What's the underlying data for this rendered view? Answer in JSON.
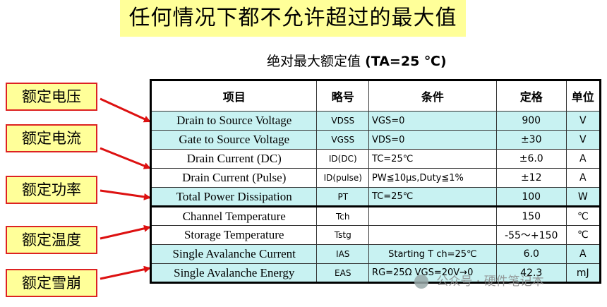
{
  "banner": "任何情况下都不允许超过的最大值",
  "subtitle": {
    "text": "绝对最大额定值",
    "condition": "(TA=25 ℃)"
  },
  "labels": [
    "额定电压",
    "额定电流",
    "额定功率",
    "额定温度",
    "额定雪崩"
  ],
  "table": {
    "headers": [
      "项目",
      "略号",
      "条件",
      "定格",
      "单位"
    ],
    "rows": [
      {
        "item": "Drain to Source Voltage",
        "symbol": "VDSS",
        "condition": "VGS=0",
        "rating": "900",
        "unit": "V",
        "style": "cyan"
      },
      {
        "item": "Gate to Source Voltage",
        "symbol": "VGSS",
        "condition": "VDS=0",
        "rating": "±30",
        "unit": "V",
        "style": "cyan"
      },
      {
        "item": "Drain Current (DC)",
        "symbol": "ID(DC)",
        "condition": "TC=25℃",
        "rating": "±6.0",
        "unit": "A",
        "style": "white"
      },
      {
        "item": "Drain Current (Pulse)",
        "symbol": "ID(pulse)",
        "condition": "PW≦10μs,Duty≦1%",
        "rating": "±12",
        "unit": "A",
        "style": "white"
      },
      {
        "item": "Total Power Dissipation",
        "symbol": "PT",
        "condition": "TC=25℃",
        "rating": "100",
        "unit": "W",
        "style": "cyan"
      },
      {
        "item": "Channel Temperature",
        "symbol": "Tch",
        "condition": "",
        "rating": "150",
        "unit": "℃",
        "style": "white"
      },
      {
        "item": "Storage Temperature",
        "symbol": "Tstg",
        "condition": "",
        "rating": "-55～+150",
        "unit": "℃",
        "style": "white"
      },
      {
        "item": "Single Avalanche Current",
        "symbol": "IAS",
        "condition": "Starting T ch=25℃",
        "rating": "6.0",
        "unit": "A",
        "style": "cyan"
      },
      {
        "item": "Single Avalanche Energy",
        "symbol": "EAS",
        "condition": "RG=25Ω VGS=20V→0",
        "rating": "42.3",
        "unit": "mJ",
        "style": "cyan"
      }
    ]
  },
  "watermark": "公众号 · 硬件笔记本",
  "colors": {
    "highlight": "#ffff99",
    "cyan": "#c8f2f2",
    "arrow": "#dd1111"
  }
}
